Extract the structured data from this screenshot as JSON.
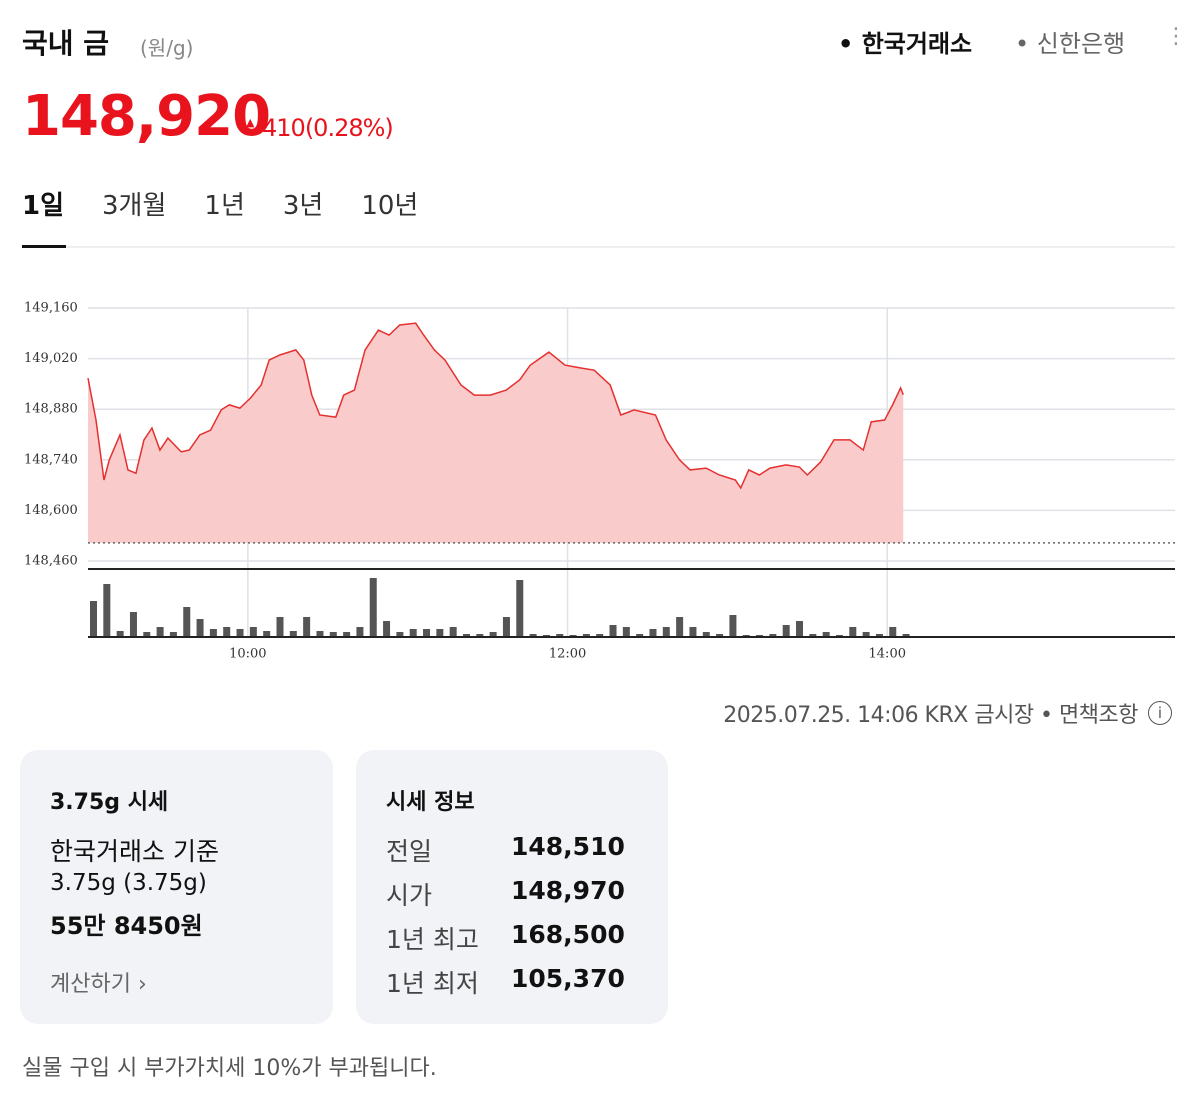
{
  "header": {
    "title": "국내 금",
    "unit": "(원/g)",
    "sources": [
      "한국거래소",
      "신한은행"
    ],
    "price": "148,920",
    "change": "410",
    "change_pct": "(0.28%)"
  },
  "tabs": [
    "1일",
    "3개월",
    "1년",
    "3년",
    "10년"
  ],
  "chart_data": [
    {
      "type": "line",
      "color": "#e5302f",
      "fill": "#f9cbcb",
      "grid": true,
      "baseline": 148510,
      "xlim": [
        540,
        948
      ],
      "ylim": [
        148460,
        149160
      ],
      "xticks": [
        {
          "value": 600,
          "label": "10:00"
        },
        {
          "value": 720,
          "label": "12:00"
        },
        {
          "value": 840,
          "label": "14:00"
        }
      ],
      "yticks": [
        {
          "value": 148460,
          "label": "148,460"
        },
        {
          "value": 148600,
          "label": "148,600"
        },
        {
          "value": 148740,
          "label": "148,740"
        },
        {
          "value": 148880,
          "label": "148,880"
        },
        {
          "value": 149020,
          "label": "149,020"
        },
        {
          "value": 149160,
          "label": "149,160"
        }
      ],
      "x": [
        540,
        543,
        546,
        548,
        552,
        555,
        558,
        561,
        564,
        567,
        570,
        575,
        578,
        582,
        586,
        590,
        593,
        597,
        601,
        605,
        608,
        612,
        618,
        621,
        624,
        627,
        633,
        636,
        640,
        644,
        649,
        653,
        657,
        663,
        666,
        670,
        674,
        680,
        685,
        691,
        697,
        702,
        706,
        713,
        719,
        725,
        730,
        736,
        740,
        745,
        753,
        757,
        762,
        766,
        772,
        777,
        783,
        785,
        788,
        792,
        796,
        802,
        807,
        810,
        815,
        820,
        826,
        831,
        834,
        839,
        842,
        845,
        846
      ],
      "values": [
        148966,
        148850,
        148684,
        148740,
        148809,
        148712,
        148703,
        148795,
        148828,
        148767,
        148800,
        148762,
        148767,
        148809,
        148822,
        148878,
        148892,
        148883,
        148911,
        148947,
        149016,
        149030,
        149044,
        149016,
        148919,
        148864,
        148858,
        148919,
        148933,
        149044,
        149099,
        149085,
        149113,
        149118,
        149085,
        149044,
        149016,
        148947,
        148919,
        148919,
        148933,
        148961,
        149002,
        149038,
        149002,
        148994,
        148988,
        148947,
        148864,
        148878,
        148864,
        148795,
        148740,
        148712,
        148717,
        148698,
        148684,
        148662,
        148712,
        148698,
        148717,
        148726,
        148720,
        148698,
        148734,
        148795,
        148795,
        148767,
        148845,
        148850,
        148892,
        148939,
        148920
      ]
    },
    {
      "type": "bar",
      "color": "#555555",
      "xlim": [
        540,
        948
      ],
      "ylim": [
        0,
        60
      ],
      "x": [
        540,
        545,
        550,
        555,
        560,
        565,
        570,
        575,
        580,
        585,
        590,
        595,
        600,
        605,
        610,
        615,
        620,
        625,
        630,
        635,
        640,
        645,
        650,
        655,
        660,
        665,
        670,
        675,
        680,
        685,
        690,
        695,
        700,
        705,
        710,
        715,
        720,
        725,
        730,
        735,
        740,
        745,
        750,
        755,
        760,
        765,
        770,
        775,
        780,
        785,
        790,
        795,
        800,
        805,
        810,
        815,
        820,
        825,
        830,
        835,
        840,
        845
      ],
      "values": [
        36,
        53,
        6,
        25,
        5,
        10,
        5,
        30,
        18,
        8,
        10,
        8,
        10,
        6,
        20,
        6,
        20,
        6,
        5,
        5,
        10,
        59,
        16,
        5,
        8,
        8,
        8,
        10,
        3,
        3,
        5,
        20,
        57,
        3,
        2,
        3,
        2,
        3,
        3,
        12,
        10,
        3,
        8,
        10,
        20,
        10,
        5,
        3,
        22,
        2,
        2,
        3,
        12,
        16,
        3,
        5,
        2,
        10,
        5,
        3,
        10,
        3
      ]
    }
  ],
  "footer": {
    "timestamp": "2025.07.25. 14:06 KRX 금시장",
    "disclaimer": "면책조항"
  },
  "card1": {
    "title": "3.75g 시세",
    "basis": "한국거래소 기준",
    "weight": "3.75g (3.75g)",
    "amount": "55만 8450원",
    "link": "계산하기"
  },
  "card2": {
    "title": "시세 정보",
    "rows": [
      [
        "전일",
        "148,510"
      ],
      [
        "시가",
        "148,970"
      ],
      [
        "1년 최고",
        "168,500"
      ],
      [
        "1년 최저",
        "105,370"
      ]
    ]
  },
  "note": "실물 구입 시 부가가치세 10%가 부과됩니다."
}
